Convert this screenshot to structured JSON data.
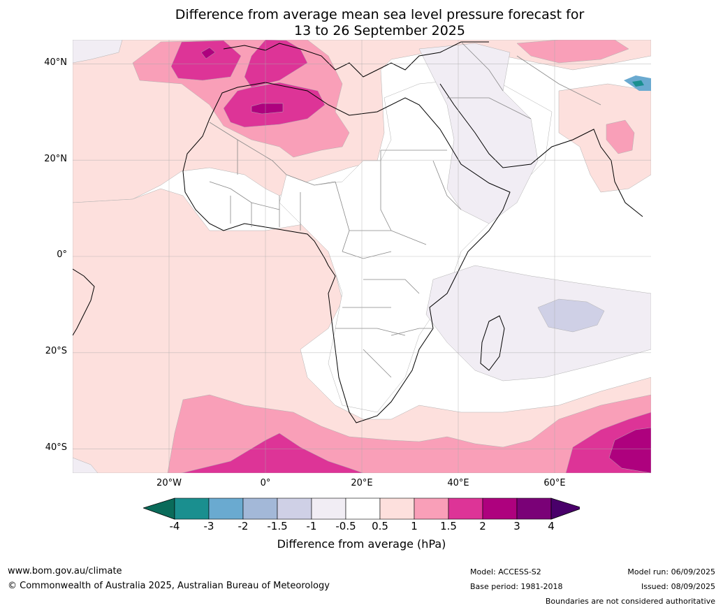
{
  "title": {
    "line1": "Difference from average mean sea level pressure forecast for",
    "line2": "13 to 26 September 2025"
  },
  "axes": {
    "lat_labels": [
      "40°N",
      "20°N",
      "0°",
      "20°S",
      "40°S"
    ],
    "lon_labels": [
      "20°W",
      "0°",
      "20°E",
      "40°E",
      "60°E"
    ],
    "lat_values": [
      40,
      20,
      0,
      -20,
      -40
    ],
    "lon_values": [
      -20,
      0,
      20,
      40,
      60
    ],
    "lon_range": [
      -40,
      80
    ],
    "lat_range": [
      -45,
      45
    ],
    "grid": true
  },
  "colorbar": {
    "ticks": [
      "-4",
      "-3",
      "-2",
      "-1.5",
      "-1",
      "-0.5",
      "0.5",
      "1",
      "1.5",
      "2",
      "3",
      "4"
    ],
    "colors": [
      "#1a8f8f",
      "#6aaad0",
      "#a3b8d8",
      "#cfd0e6",
      "#f1edf4",
      "#ffffff",
      "#fde0dd",
      "#f99fb8",
      "#dd3497",
      "#ae017e",
      "#7a0177"
    ],
    "under_color": "#0a6b5a",
    "over_color": "#49006a",
    "label": "Difference from average (hPa)"
  },
  "footer": {
    "website": "www.bom.gov.au/climate",
    "copyright": "© Commonwealth of Australia 2025, Australian Bureau of Meteorology",
    "model": "Model: ACCESS-S2",
    "base_period": "Base period: 1981-2018",
    "model_run": "Model run: 06/09/2025",
    "issued": "Issued: 08/09/2025",
    "disclaimer": "Boundaries are not considered authoritative"
  }
}
